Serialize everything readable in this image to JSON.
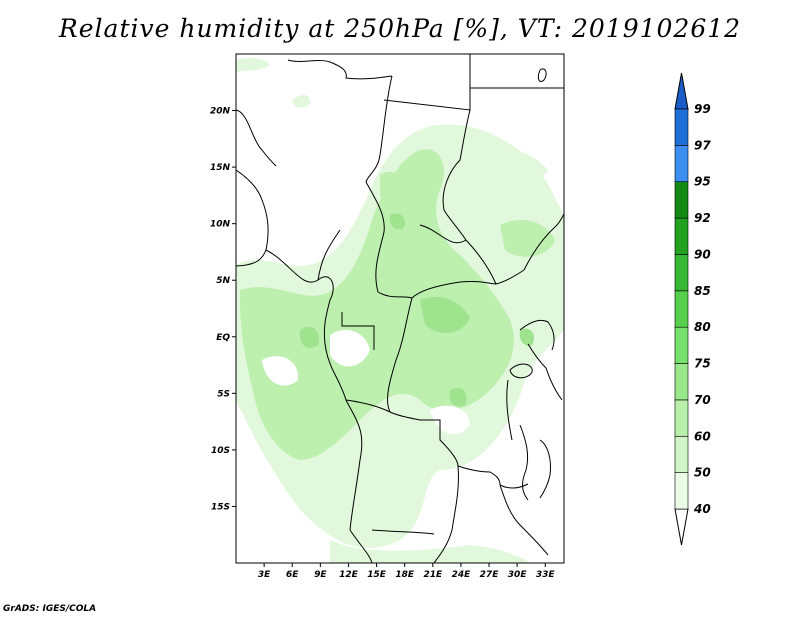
{
  "title": "Relative humidity at 250hPa [%], VT: 2019102612",
  "credit": "GrADS: IGES/COLA",
  "map": {
    "lon_range": [
      0,
      35
    ],
    "lat_range": [
      -20,
      25
    ],
    "lat_ticks": [
      {
        "value": 20,
        "label": "20N"
      },
      {
        "value": 15,
        "label": "15N"
      },
      {
        "value": 10,
        "label": "10N"
      },
      {
        "value": 5,
        "label": "5N"
      },
      {
        "value": 0,
        "label": "EQ"
      },
      {
        "value": -5,
        "label": "5S"
      },
      {
        "value": -10,
        "label": "10S"
      },
      {
        "value": -15,
        "label": "15S"
      }
    ],
    "lon_ticks": [
      {
        "value": 3,
        "label": "3E"
      },
      {
        "value": 6,
        "label": "6E"
      },
      {
        "value": 9,
        "label": "9E"
      },
      {
        "value": 12,
        "label": "12E"
      },
      {
        "value": 15,
        "label": "15E"
      },
      {
        "value": 18,
        "label": "18E"
      },
      {
        "value": 21,
        "label": "21E"
      },
      {
        "value": 24,
        "label": "24E"
      },
      {
        "value": 27,
        "label": "27E"
      },
      {
        "value": 30,
        "label": "30E"
      },
      {
        "value": 33,
        "label": "33E"
      }
    ]
  },
  "colorbar": {
    "levels": [
      {
        "label": "40",
        "color": "#ffffff"
      },
      {
        "label": "50",
        "color": "#eafbe6"
      },
      {
        "label": "60",
        "color": "#d2f5c8"
      },
      {
        "label": "70",
        "color": "#b8efaa"
      },
      {
        "label": "75",
        "color": "#9ae88c"
      },
      {
        "label": "80",
        "color": "#78e06c"
      },
      {
        "label": "85",
        "color": "#56d04c"
      },
      {
        "label": "90",
        "color": "#38b834"
      },
      {
        "label": "92",
        "color": "#22a020"
      },
      {
        "label": "95",
        "color": "#148a14"
      },
      {
        "label": "97",
        "color": "#3c8ff0"
      },
      {
        "label": "99",
        "color": "#1e6ed8"
      }
    ],
    "extend_low_color": "#ffffff",
    "extend_high_color": "#1a5cc8"
  },
  "humidity_colors": {
    "light": "#e2f8dc",
    "mid": "#bdefaf",
    "dark": "#9fe38f"
  }
}
